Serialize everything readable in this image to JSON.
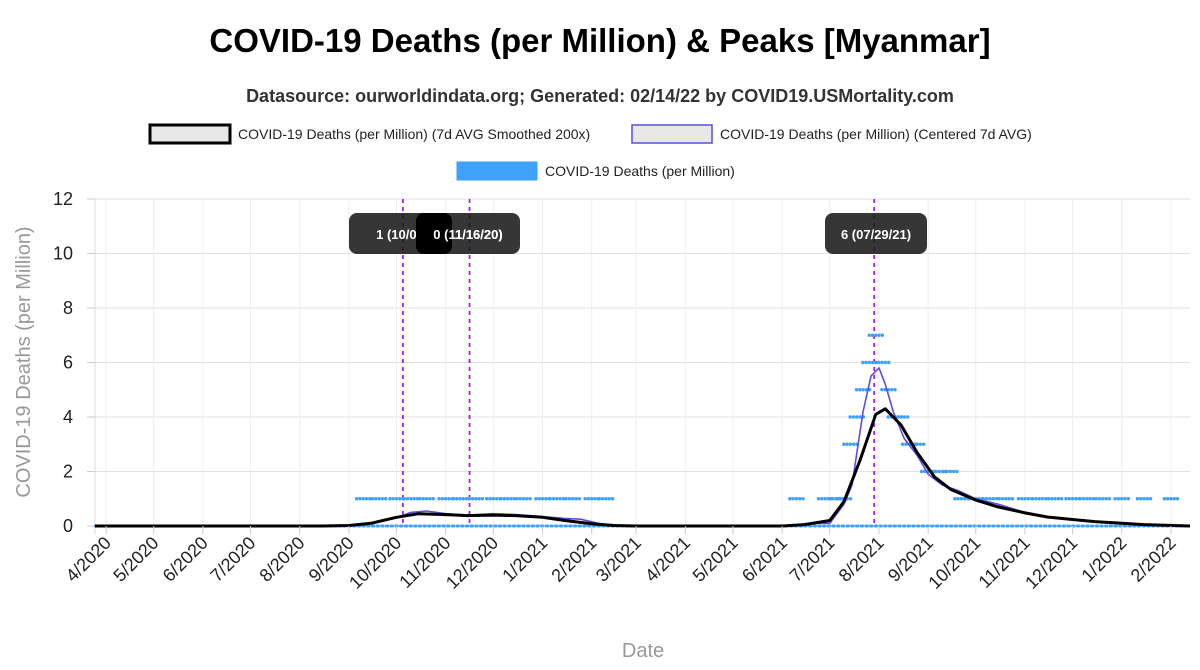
{
  "chart_data": {
    "type": "line",
    "title": "COVID-19 Deaths (per Million) & Peaks [Myanmar]",
    "subtitle": "Datasource: ourworldindata.org; Generated: 02/14/22 by COVID19.USMortality.com",
    "xlabel": "Date",
    "ylabel": "COVID-19 Deaths (per Million)",
    "ylim": [
      0,
      12
    ],
    "yticks": [
      "0",
      "2",
      "4",
      "6",
      "8",
      "10",
      "12"
    ],
    "xticks": [
      "4/2020",
      "5/2020",
      "6/2020",
      "7/2020",
      "8/2020",
      "9/2020",
      "10/2020",
      "11/2020",
      "12/2020",
      "1/2021",
      "2/2021",
      "3/2021",
      "4/2021",
      "5/2021",
      "6/2021",
      "7/2021",
      "8/2021",
      "9/2021",
      "10/2021",
      "11/2021",
      "12/2021",
      "1/2022",
      "2/2022"
    ],
    "xrange": [
      "2020-03-25",
      "2022-02-13"
    ],
    "grid": true,
    "legend_position": "top",
    "series": [
      {
        "name": "COVID-19 Deaths (per Million) (7d AVG Smoothed 200x)",
        "style": "line",
        "color": "#000000",
        "x": [
          "2020-03-25",
          "2020-08-15",
          "2020-09-01",
          "2020-09-15",
          "2020-10-01",
          "2020-10-15",
          "2020-11-01",
          "2020-11-15",
          "2020-12-01",
          "2020-12-15",
          "2021-01-01",
          "2021-01-15",
          "2021-02-01",
          "2021-02-15",
          "2021-03-01",
          "2021-06-01",
          "2021-06-15",
          "2021-07-01",
          "2021-07-10",
          "2021-07-20",
          "2021-07-30",
          "2021-08-05",
          "2021-08-15",
          "2021-08-25",
          "2021-09-05",
          "2021-09-15",
          "2021-10-01",
          "2021-10-15",
          "2021-11-01",
          "2021-11-15",
          "2021-12-01",
          "2021-12-15",
          "2022-01-01",
          "2022-01-15",
          "2022-02-13"
        ],
        "y": [
          0,
          0,
          0.02,
          0.1,
          0.32,
          0.45,
          0.42,
          0.38,
          0.4,
          0.38,
          0.32,
          0.2,
          0.08,
          0.02,
          0,
          0,
          0.05,
          0.2,
          0.9,
          2.4,
          4.1,
          4.3,
          3.7,
          2.7,
          1.8,
          1.35,
          0.95,
          0.7,
          0.48,
          0.33,
          0.24,
          0.16,
          0.1,
          0.05,
          0
        ]
      },
      {
        "name": "COVID-19 Deaths (per Million) (Centered 7d AVG)",
        "style": "line",
        "color": "#5b4de0",
        "x": [
          "2020-03-25",
          "2020-09-01",
          "2020-09-15",
          "2020-10-01",
          "2020-10-10",
          "2020-10-20",
          "2020-11-01",
          "2020-11-15",
          "2020-12-01",
          "2020-12-15",
          "2021-01-01",
          "2021-01-15",
          "2021-01-25",
          "2021-02-05",
          "2021-02-15",
          "2021-06-01",
          "2021-06-20",
          "2021-07-01",
          "2021-07-10",
          "2021-07-15",
          "2021-07-22",
          "2021-07-27",
          "2021-08-01",
          "2021-08-05",
          "2021-08-10",
          "2021-08-17",
          "2021-08-25",
          "2021-09-01",
          "2021-09-10",
          "2021-09-20",
          "2021-10-01",
          "2021-10-15",
          "2021-11-01",
          "2021-11-15",
          "2021-12-01",
          "2021-12-15",
          "2022-01-01",
          "2022-01-15",
          "2022-02-13"
        ],
        "y": [
          0,
          0,
          0.1,
          0.3,
          0.5,
          0.55,
          0.45,
          0.4,
          0.45,
          0.42,
          0.35,
          0.28,
          0.25,
          0.1,
          0.02,
          0,
          0.1,
          0.1,
          0.8,
          1.5,
          4.2,
          5.5,
          5.8,
          5.2,
          4.2,
          3.2,
          2.6,
          1.9,
          1.5,
          1.3,
          1,
          0.8,
          0.5,
          0.35,
          0.25,
          0.15,
          0.12,
          0.05,
          0
        ]
      },
      {
        "name": "COVID-19 Deaths (per Million)",
        "style": "points",
        "color": "#3ea1fb",
        "values_note_dates": [
          "2020-09-10",
          "2020-09-20",
          "2020-10-01",
          "2020-10-10",
          "2020-10-20",
          "2020-11-01",
          "2020-11-10",
          "2020-11-20",
          "2020-12-01",
          "2020-12-10",
          "2020-12-20",
          "2021-01-01",
          "2021-01-10",
          "2021-01-20",
          "2021-02-01",
          "2021-02-10",
          "2021-06-10",
          "2021-06-28",
          "2021-07-05",
          "2021-07-10",
          "2021-07-14",
          "2021-07-18",
          "2021-07-22",
          "2021-07-26",
          "2021-07-30",
          "2021-08-03",
          "2021-08-07",
          "2021-08-11",
          "2021-08-15",
          "2021-08-20",
          "2021-08-25",
          "2021-09-01",
          "2021-09-08",
          "2021-09-15",
          "2021-09-22",
          "2021-10-01",
          "2021-10-10",
          "2021-10-20",
          "2021-11-01",
          "2021-11-10",
          "2021-11-20",
          "2021-12-01",
          "2021-12-10",
          "2021-12-20",
          "2022-01-01",
          "2022-01-15",
          "2022-02-01"
        ],
        "values": [
          1,
          1,
          1,
          1,
          1,
          1,
          1,
          1,
          1,
          1,
          1,
          1,
          1,
          1,
          1,
          1,
          1,
          1,
          1,
          1,
          3,
          4,
          5,
          6,
          7,
          6,
          5,
          4,
          4,
          3,
          3,
          2,
          2,
          2,
          1,
          1,
          1,
          1,
          1,
          1,
          1,
          1,
          1,
          1,
          1,
          1,
          1
        ]
      }
    ],
    "peaks": [
      {
        "label": "1 (10/05",
        "date": "2020-10-05"
      },
      {
        "label": "0 (11/16/20)",
        "date": "2020-11-16"
      },
      {
        "label": "6 (07/29/21)",
        "date": "2021-07-29"
      }
    ],
    "peak_line_color": "#a020f0"
  }
}
